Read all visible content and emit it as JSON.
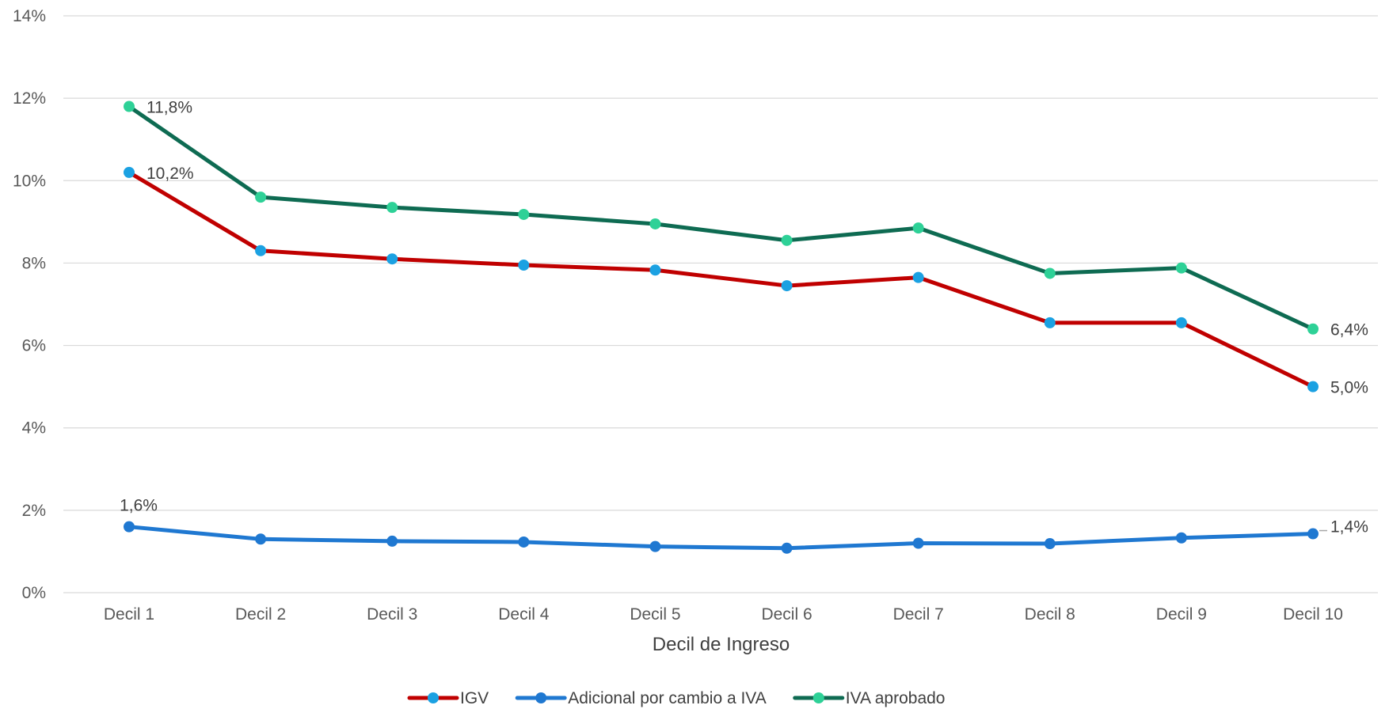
{
  "chart_data": {
    "type": "line",
    "title": "",
    "xlabel": "Decil de Ingreso",
    "ylabel": "",
    "categories": [
      "Decil 1",
      "Decil 2",
      "Decil 3",
      "Decil 4",
      "Decil 5",
      "Decil 6",
      "Decil 7",
      "Decil 8",
      "Decil 9",
      "Decil 10"
    ],
    "ylim": [
      0,
      14
    ],
    "y_ticks": [
      0,
      2,
      4,
      6,
      8,
      10,
      12,
      14
    ],
    "y_tick_labels": [
      "0%",
      "2%",
      "4%",
      "6%",
      "8%",
      "10%",
      "12%",
      "14%"
    ],
    "grid": true,
    "legend_position": "bottom",
    "series": [
      {
        "name": "IGV",
        "line_color": "#c00000",
        "marker_color": "#1ba1e2",
        "values": [
          10.2,
          8.3,
          8.1,
          7.95,
          7.83,
          7.45,
          7.65,
          6.55,
          6.55,
          5.0
        ],
        "labels": [
          {
            "index": 0,
            "text": "10,2%"
          },
          {
            "index": 9,
            "text": "5,0%"
          }
        ]
      },
      {
        "name": "Adicional por cambio a IVA",
        "line_color": "#1f78d1",
        "marker_color": "#1f78d1",
        "values": [
          1.6,
          1.3,
          1.25,
          1.23,
          1.12,
          1.08,
          1.2,
          1.19,
          1.33,
          1.43
        ],
        "labels": [
          {
            "index": 0,
            "text": "1,6%"
          },
          {
            "index": 9,
            "text": "1,4%"
          }
        ]
      },
      {
        "name": "IVA aprobado",
        "line_color": "#0e6b52",
        "marker_color": "#2ed197",
        "values": [
          11.8,
          9.6,
          9.35,
          9.18,
          8.95,
          8.55,
          8.85,
          7.75,
          7.88,
          6.4
        ],
        "labels": [
          {
            "index": 0,
            "text": "11,8%"
          },
          {
            "index": 9,
            "text": "6,4%"
          }
        ]
      }
    ]
  }
}
